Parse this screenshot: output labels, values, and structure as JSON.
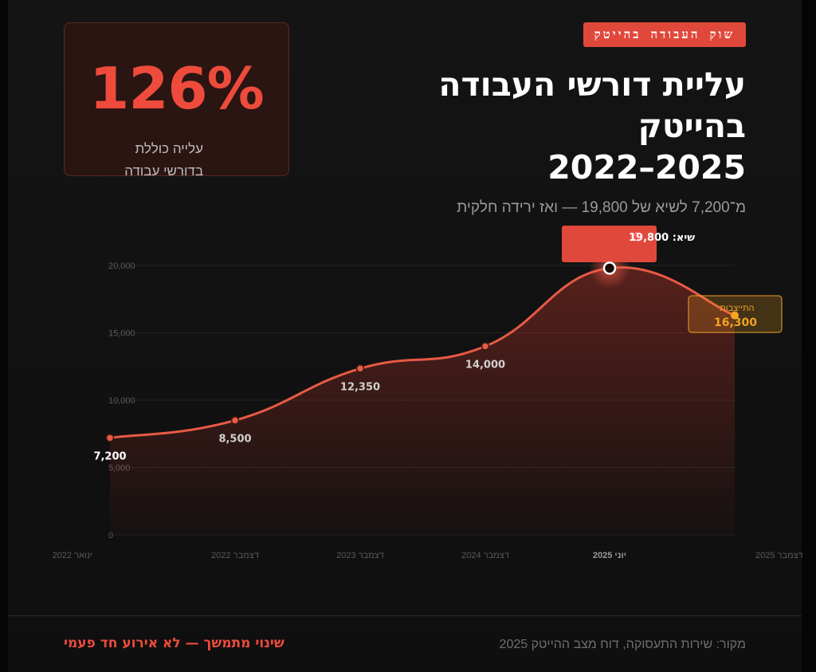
{
  "header": {
    "tag": "שוק העבודה בהייטק",
    "title_line1": "עליית דורשי העבודה",
    "title_line2": "בהייטק",
    "title_line3": "2022–2025",
    "subtitle": "מ־7,200 לשיא של 19,800 — ואז ירידה חלקית"
  },
  "stat": {
    "value": "126%",
    "label_line1": "עלייה כוללת",
    "label_line2": "בדורשי עבודה"
  },
  "chart_data": {
    "type": "area",
    "categories": [
      "ינואר 2022",
      "דצמבר 2022",
      "דצמבר 2023",
      "דצמבר 2024",
      "יוני 2025",
      "דצמבר 2025"
    ],
    "values": [
      7200,
      8500,
      12350,
      14000,
      19800,
      16300
    ],
    "data_labels": [
      "7,200",
      "8,500",
      "12,350",
      "14,000",
      "",
      "16,300"
    ],
    "ylim": [
      0,
      20000
    ],
    "y_ticks": [
      0,
      5000,
      10000,
      15000,
      20000
    ],
    "y_tick_labels": [
      "0",
      "5,000",
      "10,000",
      "15,000",
      "20,000"
    ],
    "grid": true,
    "annotations": {
      "peak": "שיא: 19,800",
      "plateau_label": "התייצבות",
      "plateau_value": "16,300"
    },
    "colors": {
      "line": "#e85a45",
      "area": "#c9382b",
      "peak_box": "#e0483b",
      "plateau": "#f2a324",
      "grid": "#232323",
      "axis_text": "#5a5a5a"
    }
  },
  "footer": {
    "source": "מקור: שירות התעסוקה, דוח מצב ההייטק 2025",
    "tagline": "שינוי מתמשך — לא אירוע חד פעמי"
  }
}
